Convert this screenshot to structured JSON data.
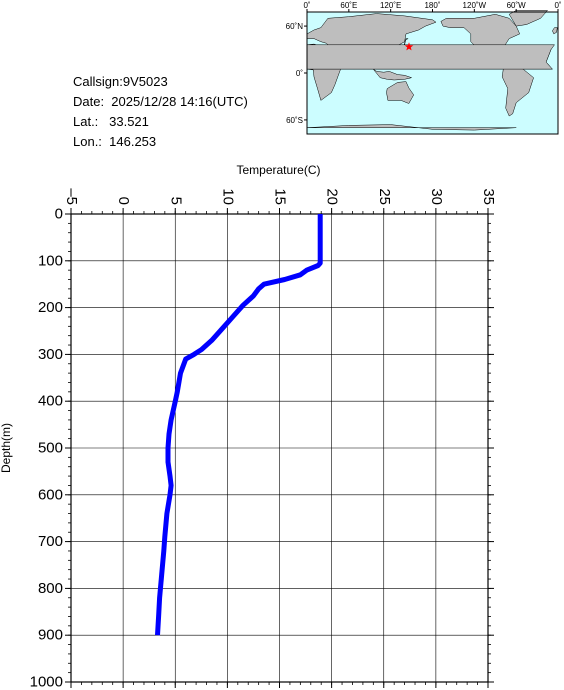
{
  "info": {
    "callsign": "Callsign:9V5023",
    "date": "Date:  2025/12/28 14:16(UTC)",
    "lat": "Lat.:   33.521",
    "lon": "Lon.:  146.253"
  },
  "map": {
    "lon_labels": [
      "0˚",
      "60˚E",
      "120˚E",
      "180˚",
      "120˚W",
      "60˚W",
      "0˚"
    ],
    "lat_labels": [
      "60˚N",
      "0˚",
      "60˚S"
    ],
    "station": {
      "lat": 33.521,
      "lon": 146.253
    },
    "colors": {
      "ocean": "#ccfdff",
      "land": "#bebebe",
      "marker": "#ff0000"
    }
  },
  "chart_data": {
    "type": "line",
    "xlabel": "Temperature(C)",
    "ylabel": "Depth(m)",
    "xlim": [
      -5,
      35
    ],
    "ylim": [
      1000,
      0
    ],
    "x_ticks": [
      -5,
      0,
      5,
      10,
      15,
      20,
      25,
      30,
      35
    ],
    "y_ticks": [
      0,
      100,
      200,
      300,
      400,
      500,
      600,
      700,
      800,
      900,
      1000
    ],
    "grid": true,
    "series": [
      {
        "color": "#0000ff",
        "x": [
          18.9,
          18.9,
          18.9,
          18.7,
          17.6,
          17.0,
          15.5,
          13.5,
          13.0,
          12.5,
          11.5,
          10.5,
          9.5,
          8.5,
          7.5,
          6.8,
          6.0,
          5.5,
          5.2,
          5.0,
          4.8,
          4.6,
          4.4,
          4.3,
          4.3,
          4.5,
          4.6,
          4.5,
          4.2,
          4.0,
          3.9,
          3.7,
          3.5,
          3.4,
          3.3
        ],
        "y": [
          0,
          100,
          105,
          110,
          120,
          130,
          140,
          150,
          160,
          175,
          195,
          220,
          245,
          270,
          290,
          300,
          310,
          340,
          380,
          400,
          420,
          440,
          470,
          500,
          530,
          560,
          580,
          600,
          640,
          690,
          720,
          770,
          820,
          860,
          900
        ]
      }
    ]
  }
}
